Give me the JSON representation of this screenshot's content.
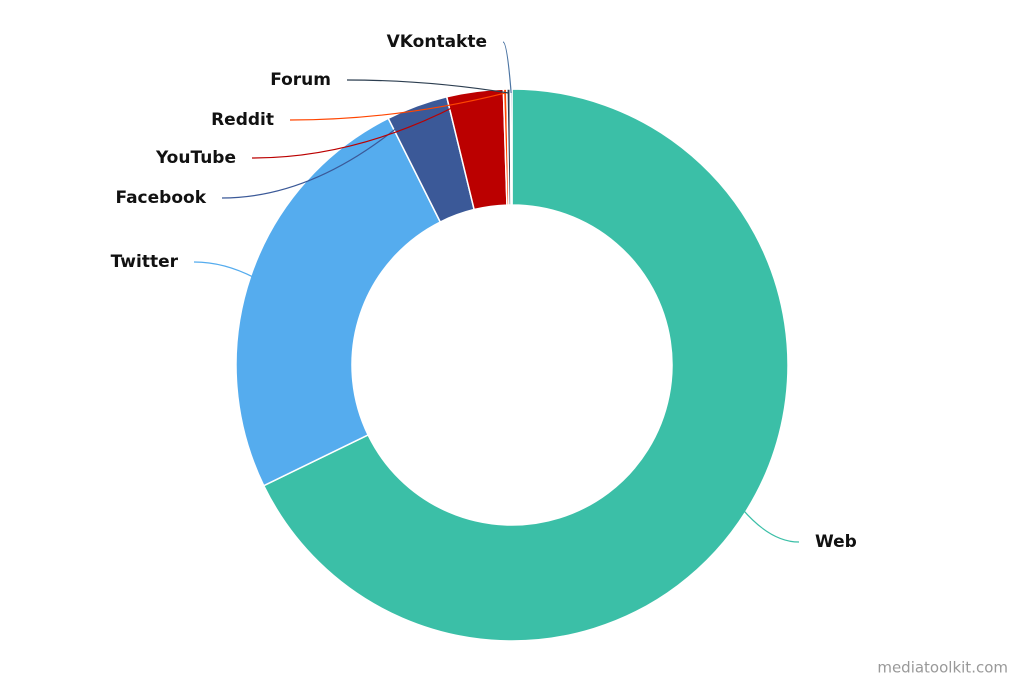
{
  "chart_data": {
    "type": "donut",
    "categories": [
      "Web",
      "Twitter",
      "Facebook",
      "YouTube",
      "Reddit",
      "Forum",
      "VKontakte"
    ],
    "values": [
      67.8,
      24.8,
      3.6,
      3.3,
      0.2,
      0.2,
      0.1
    ],
    "colors": [
      "#3bbfa7",
      "#55acee",
      "#3b5998",
      "#bb0000",
      "#ff4500",
      "#2c3e50",
      "#4c75a3"
    ],
    "watermark": "mediatoolkit.com"
  }
}
